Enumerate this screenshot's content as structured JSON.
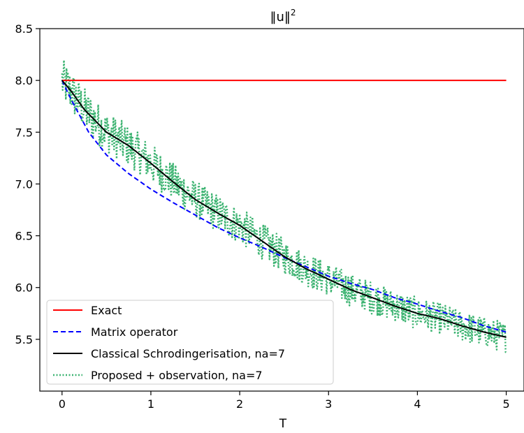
{
  "chart_data": {
    "type": "line",
    "title": "‖u‖",
    "title_superscript": "2",
    "xlabel": "T",
    "ylabel": "",
    "xlim": [
      -0.25,
      5.2
    ],
    "ylim": [
      5.0,
      8.5
    ],
    "xticks": [
      0,
      1,
      2,
      3,
      4,
      5
    ],
    "xtick_labels": [
      "0",
      "1",
      "2",
      "3",
      "4",
      "5"
    ],
    "yticks": [
      5.5,
      6.0,
      6.5,
      7.0,
      7.5,
      8.0,
      8.5
    ],
    "ytick_labels": [
      "5.5",
      "6.0",
      "6.5",
      "7.0",
      "7.5",
      "8.0",
      "8.5"
    ],
    "grid": false,
    "legend_position": "lower-left",
    "series": [
      {
        "name": "Exact",
        "color": "#ff0000",
        "style": "solid",
        "x": [
          0,
          5
        ],
        "y": [
          8.0,
          8.0
        ]
      },
      {
        "name": "Matrix operator",
        "color": "#0000ff",
        "style": "dashed",
        "x": [
          0,
          0.1,
          0.2,
          0.3,
          0.5,
          0.75,
          1.0,
          1.25,
          1.5,
          1.75,
          2.0,
          2.25,
          2.5,
          2.75,
          3.0,
          3.25,
          3.5,
          3.75,
          4.0,
          4.25,
          4.5,
          4.75,
          5.0
        ],
        "y": [
          8.0,
          7.82,
          7.66,
          7.5,
          7.28,
          7.1,
          6.95,
          6.82,
          6.7,
          6.58,
          6.48,
          6.39,
          6.29,
          6.2,
          6.11,
          6.04,
          5.98,
          5.9,
          5.84,
          5.77,
          5.71,
          5.63,
          5.57
        ]
      },
      {
        "name": "Classical Schrodingerisation, na=7",
        "color": "#000000",
        "style": "solid",
        "x": [
          0,
          0.1,
          0.25,
          0.5,
          0.75,
          1.0,
          1.25,
          1.5,
          1.75,
          2.0,
          2.25,
          2.5,
          2.75,
          3.0,
          3.25,
          3.5,
          3.75,
          4.0,
          4.25,
          4.5,
          4.75,
          5.0
        ],
        "y": [
          8.0,
          7.9,
          7.72,
          7.5,
          7.37,
          7.2,
          7.02,
          6.85,
          6.72,
          6.6,
          6.45,
          6.3,
          6.18,
          6.08,
          5.98,
          5.9,
          5.82,
          5.75,
          5.7,
          5.63,
          5.57,
          5.52
        ]
      },
      {
        "name": "Proposed + observation, na=7",
        "color": "#3cb371",
        "style": "dotted",
        "noise_amplitude": 0.22,
        "x": [
          0,
          0.1,
          0.25,
          0.5,
          0.75,
          1.0,
          1.25,
          1.5,
          1.75,
          2.0,
          2.25,
          2.5,
          2.75,
          3.0,
          3.25,
          3.5,
          3.75,
          4.0,
          4.25,
          4.5,
          4.75,
          5.0
        ],
        "y": [
          8.0,
          7.9,
          7.72,
          7.5,
          7.37,
          7.2,
          7.02,
          6.85,
          6.72,
          6.6,
          6.45,
          6.3,
          6.18,
          6.08,
          5.98,
          5.9,
          5.82,
          5.75,
          5.7,
          5.63,
          5.57,
          5.52
        ]
      }
    ]
  }
}
